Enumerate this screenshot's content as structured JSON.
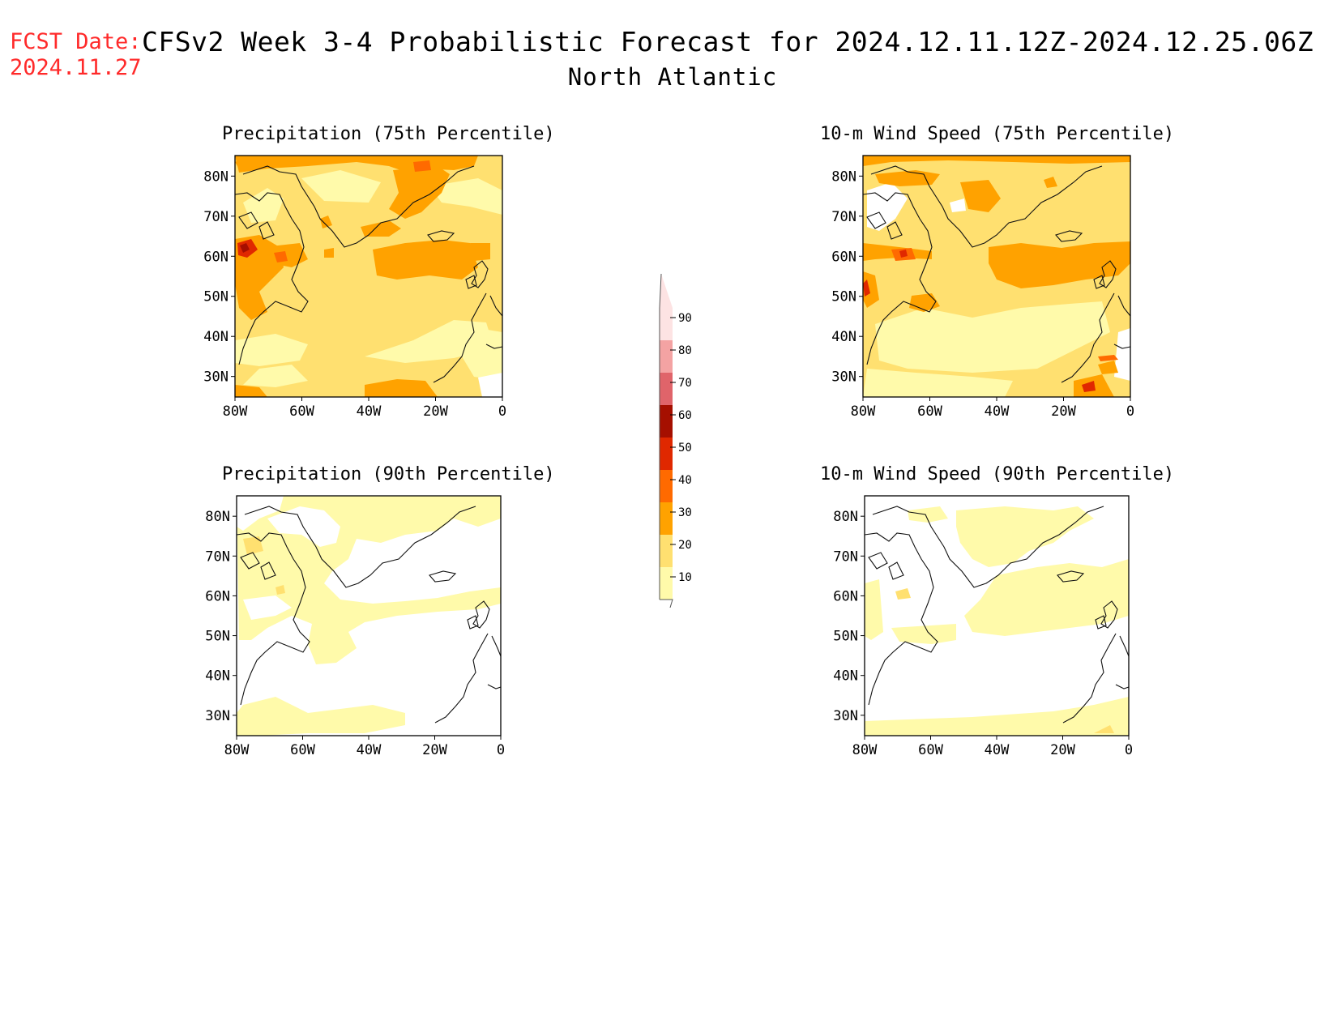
{
  "header": {
    "fcst_label": "FCST Date:",
    "fcst_date": "2024.11.27",
    "title": "CFSv2 Week 3-4 Probabilistic Forecast for 2024.12.11.12Z-2024.12.25.06Z",
    "region": "North Atlantic"
  },
  "panels": [
    {
      "title": "Precipitation (75th Percentile)"
    },
    {
      "title": "10-m Wind Speed (75th Percentile)"
    },
    {
      "title": "Precipitation (90th Percentile)"
    },
    {
      "title": "10-m Wind Speed (90th Percentile)"
    }
  ],
  "axes": {
    "lat_labels": [
      "80N",
      "70N",
      "60N",
      "50N",
      "40N",
      "30N"
    ],
    "lon_labels": [
      "80W",
      "60W",
      "40W",
      "20W",
      "0"
    ]
  },
  "colorbar": {
    "labels": [
      "90",
      "80",
      "70",
      "60",
      "50",
      "40",
      "30",
      "20",
      "10"
    ],
    "colors": [
      "#fde3e3",
      "#f4a3a3",
      "#e0646a",
      "#a50f00",
      "#e02800",
      "#ff6a00",
      "#ffa200",
      "#ffe070",
      "#fffaaa"
    ]
  },
  "colors": {
    "c10": "#fffaaa",
    "c20": "#ffe070",
    "c30": "#ffa200",
    "c40": "#ff6a00",
    "c50": "#e02800",
    "c60": "#a50f00",
    "fcst_red": "#ff2a2a"
  }
}
